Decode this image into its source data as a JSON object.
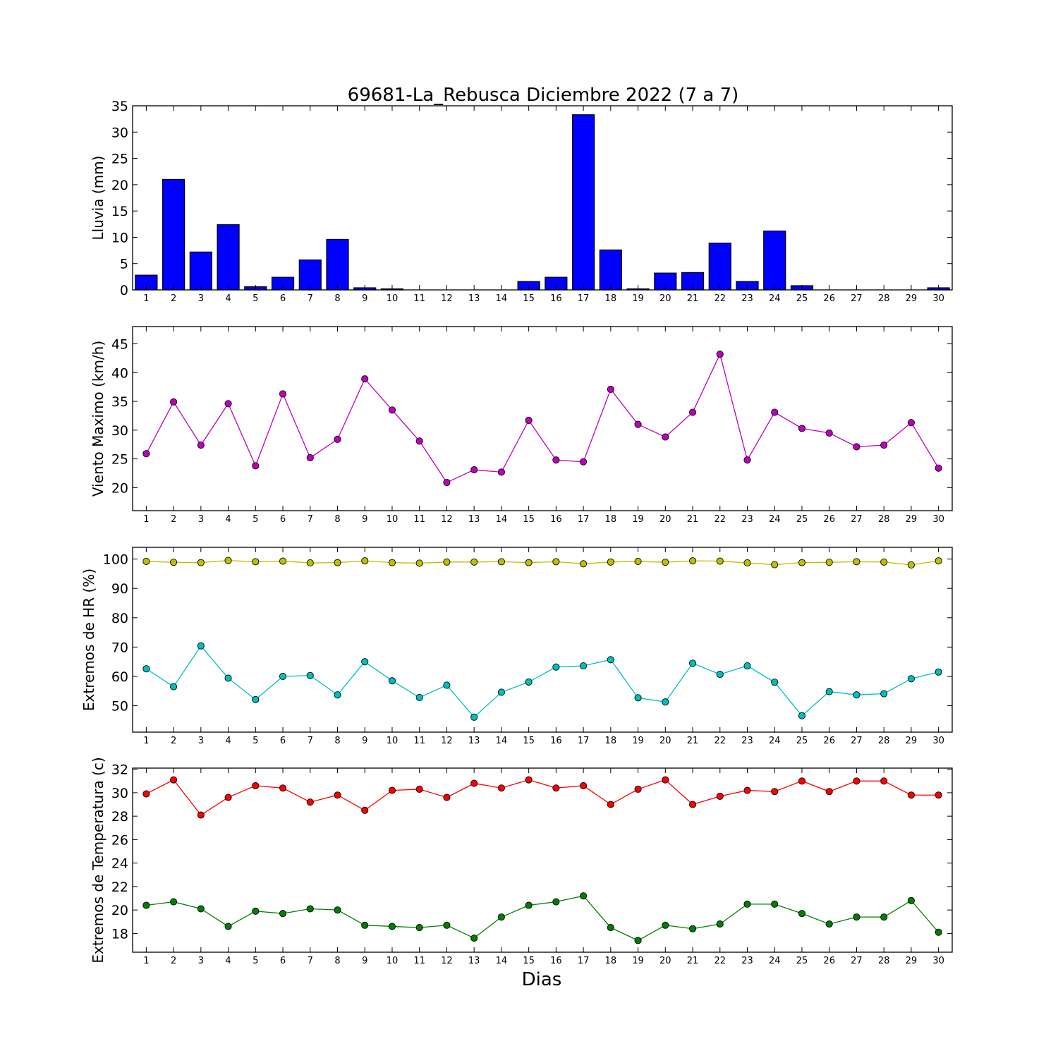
{
  "title": "69681-La_Rebusca Diciembre 2022  (7 a 7)",
  "xlabel": "Dias",
  "chart_data": [
    {
      "type": "bar",
      "ylabel": "Lluvia (mm)",
      "ylim": [
        0,
        35
      ],
      "yticks": [
        0,
        5,
        10,
        15,
        20,
        25,
        30,
        35
      ],
      "x": [
        1,
        2,
        3,
        4,
        5,
        6,
        7,
        8,
        9,
        10,
        11,
        12,
        13,
        14,
        15,
        16,
        17,
        18,
        19,
        20,
        21,
        22,
        23,
        24,
        25,
        26,
        27,
        28,
        29,
        30
      ],
      "series": [
        {
          "color": "#0000ff",
          "values": [
            2.8,
            21.0,
            7.2,
            12.4,
            0.6,
            2.4,
            5.7,
            9.6,
            0.4,
            0.2,
            0,
            0,
            0,
            0,
            1.6,
            2.4,
            33.3,
            7.6,
            0.2,
            3.2,
            3.3,
            8.9,
            1.6,
            11.2,
            0.8,
            0,
            0,
            0,
            0,
            0.4
          ]
        }
      ]
    },
    {
      "type": "line",
      "ylabel": "Viento Maximo (km/h)",
      "ylim": [
        16,
        48
      ],
      "yticks": [
        20,
        25,
        30,
        35,
        40,
        45
      ],
      "x": [
        1,
        2,
        3,
        4,
        5,
        6,
        7,
        8,
        9,
        10,
        11,
        12,
        13,
        14,
        15,
        16,
        17,
        18,
        19,
        20,
        21,
        22,
        23,
        24,
        25,
        26,
        27,
        28,
        29,
        30
      ],
      "series": [
        {
          "color": "#bf00bf",
          "values": [
            25.9,
            34.9,
            27.4,
            34.6,
            23.8,
            36.3,
            25.2,
            28.4,
            38.9,
            33.5,
            28.1,
            20.9,
            23.1,
            22.7,
            31.7,
            24.8,
            24.5,
            37.1,
            31.0,
            28.8,
            33.1,
            43.2,
            24.8,
            33.1,
            30.3,
            29.5,
            27.1,
            27.4,
            31.3,
            23.4
          ]
        }
      ]
    },
    {
      "type": "line",
      "ylabel": "Extremos de HR (%)",
      "ylim": [
        41,
        104
      ],
      "yticks": [
        50,
        60,
        70,
        80,
        90,
        100
      ],
      "x": [
        1,
        2,
        3,
        4,
        5,
        6,
        7,
        8,
        9,
        10,
        11,
        12,
        13,
        14,
        15,
        16,
        17,
        18,
        19,
        20,
        21,
        22,
        23,
        24,
        25,
        26,
        27,
        28,
        29,
        30
      ],
      "series": [
        {
          "color": "#bfbf00",
          "values": [
            99.2,
            98.9,
            98.8,
            99.5,
            99.1,
            99.3,
            98.7,
            98.8,
            99.4,
            98.8,
            98.6,
            99.0,
            99.0,
            99.1,
            98.8,
            99.1,
            98.4,
            99.0,
            99.2,
            98.9,
            99.4,
            99.3,
            98.7,
            98.1,
            98.8,
            98.9,
            99.1,
            99.0,
            98.0,
            99.4
          ]
        },
        {
          "color": "#00bfbf",
          "values": [
            62.6,
            56.5,
            70.4,
            59.4,
            52.1,
            60.0,
            60.3,
            53.7,
            65.0,
            58.5,
            52.8,
            57.0,
            46.1,
            54.6,
            58.1,
            63.2,
            63.6,
            65.7,
            52.7,
            51.3,
            64.5,
            60.7,
            63.6,
            58.0,
            46.6,
            54.8,
            53.7,
            54.1,
            59.2,
            61.5
          ]
        }
      ]
    },
    {
      "type": "line",
      "ylabel": "Extremos de Temperatura (c)",
      "ylim": [
        16.4,
        32.1
      ],
      "yticks": [
        18,
        20,
        22,
        24,
        26,
        28,
        30,
        32
      ],
      "x": [
        1,
        2,
        3,
        4,
        5,
        6,
        7,
        8,
        9,
        10,
        11,
        12,
        13,
        14,
        15,
        16,
        17,
        18,
        19,
        20,
        21,
        22,
        23,
        24,
        25,
        26,
        27,
        28,
        29,
        30
      ],
      "series": [
        {
          "color": "#ff0000",
          "values": [
            29.9,
            31.1,
            28.1,
            29.6,
            30.6,
            30.4,
            29.2,
            29.8,
            28.5,
            30.2,
            30.3,
            29.6,
            30.8,
            30.4,
            31.1,
            30.4,
            30.6,
            29.0,
            30.3,
            31.1,
            29.0,
            29.7,
            30.2,
            30.1,
            31.0,
            30.1,
            31.0,
            31.0,
            29.8,
            29.8
          ]
        },
        {
          "color": "#007f00",
          "values": [
            20.4,
            20.7,
            20.1,
            18.6,
            19.9,
            19.7,
            20.1,
            20.0,
            18.7,
            18.6,
            18.5,
            18.7,
            17.6,
            19.4,
            20.4,
            20.7,
            21.2,
            18.5,
            17.4,
            18.7,
            18.4,
            18.8,
            20.5,
            20.5,
            19.7,
            18.8,
            19.4,
            19.4,
            20.8,
            18.1
          ]
        }
      ]
    }
  ]
}
